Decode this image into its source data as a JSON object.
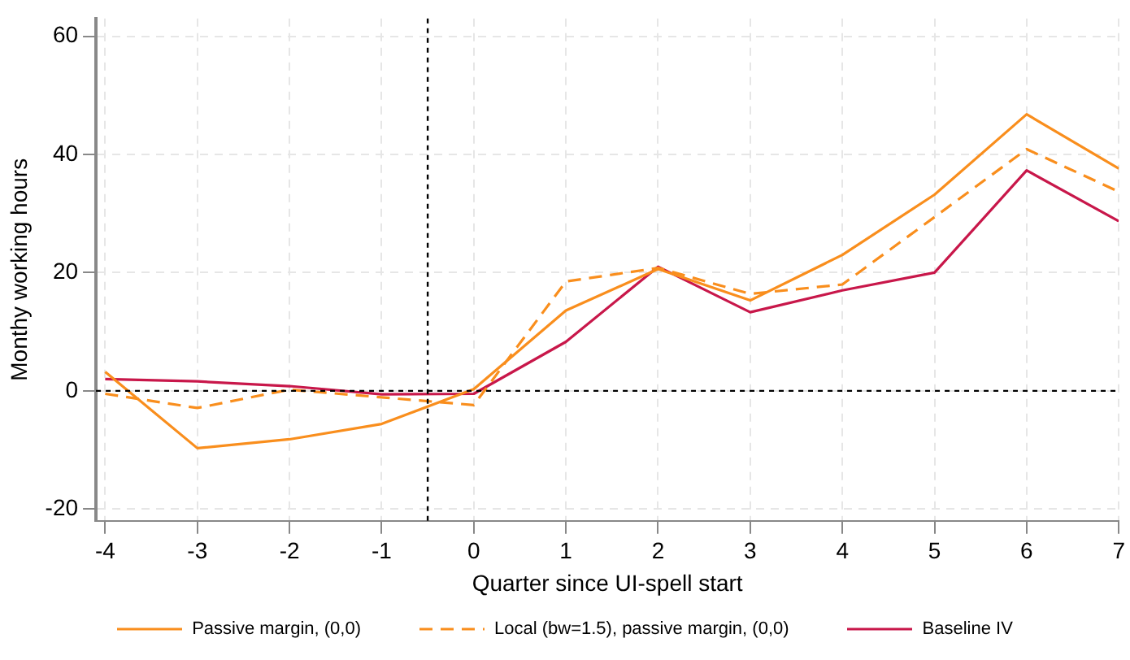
{
  "chart_data": {
    "type": "line",
    "xlabel": "Quarter since UI-spell start",
    "ylabel": "Monthy working hours",
    "x": [
      -4,
      -3,
      -2,
      -1,
      0,
      1,
      2,
      3,
      4,
      5,
      6,
      7
    ],
    "xlim": [
      -4.1,
      7
    ],
    "xticks": [
      -4,
      -3,
      -2,
      -1,
      0,
      1,
      2,
      3,
      4,
      5,
      6,
      7
    ],
    "ylim": [
      -22,
      63
    ],
    "yticks": [
      -20,
      0,
      20,
      40,
      60
    ],
    "grid": true,
    "legend": "bottom",
    "marker": "none",
    "ref_lines": [
      {
        "axis": "x",
        "value": -0.5,
        "color": "#000000",
        "line_style": "dashed"
      },
      {
        "axis": "y",
        "value": 0,
        "color": "#000000",
        "line_style": "dashed"
      }
    ],
    "series": [
      {
        "name": "Passive margin, (0,0)",
        "color": "#f98e1d",
        "line_style": "solid",
        "values": [
          3.2,
          -9.7,
          -8.2,
          -5.6,
          0.3,
          13.6,
          20.6,
          15.3,
          23,
          33.2,
          46.8,
          37.6
        ]
      },
      {
        "name": "Local (bw=1.5), passive margin, (0,0)",
        "color": "#f98e1d",
        "line_style": "dashed",
        "values": [
          -0.5,
          -2.9,
          0.2,
          -1.1,
          -2.4,
          18.5,
          20.8,
          16.4,
          18,
          29.4,
          40.9,
          33.7
        ]
      },
      {
        "name": "Baseline IV",
        "color": "#c8174a",
        "line_style": "solid",
        "values": [
          2.0,
          1.6,
          0.8,
          -0.6,
          -0.5,
          8.3,
          21,
          13.3,
          17,
          20,
          37.3,
          28.7
        ]
      }
    ]
  }
}
